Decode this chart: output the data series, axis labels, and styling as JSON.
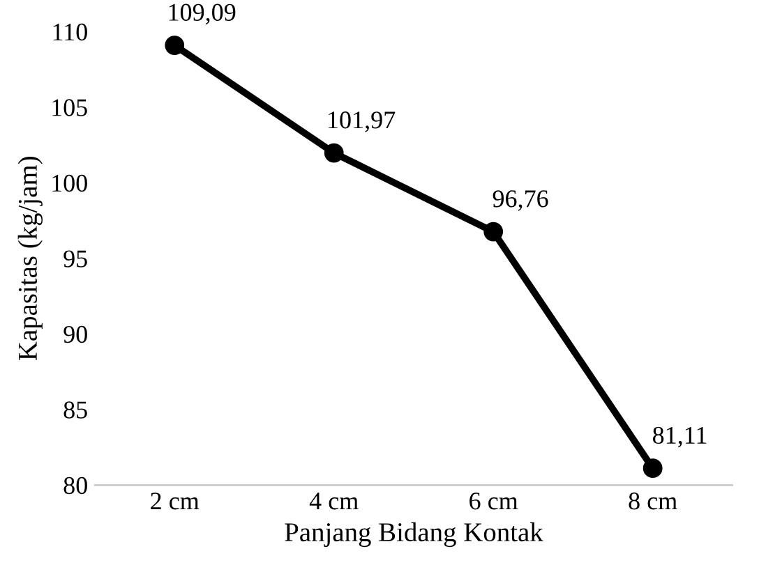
{
  "chart_data": {
    "type": "line",
    "xlabel": "Panjang Bidang Kontak",
    "ylabel": "Kapasitas (kg/jam)",
    "categories": [
      "2 cm",
      "4 cm",
      "6 cm",
      "8 cm"
    ],
    "series": [
      {
        "color": "#000000",
        "values": [
          109.09,
          101.97,
          96.76,
          81.11
        ],
        "value_labels": [
          "109,09",
          "101,97",
          "96,76",
          "81,11"
        ]
      }
    ],
    "ylim": [
      80,
      110
    ],
    "yticks": [
      80,
      85,
      90,
      95,
      100,
      105,
      110
    ],
    "grid": false,
    "legend": false,
    "marker": "circle",
    "line_style": "solid"
  }
}
